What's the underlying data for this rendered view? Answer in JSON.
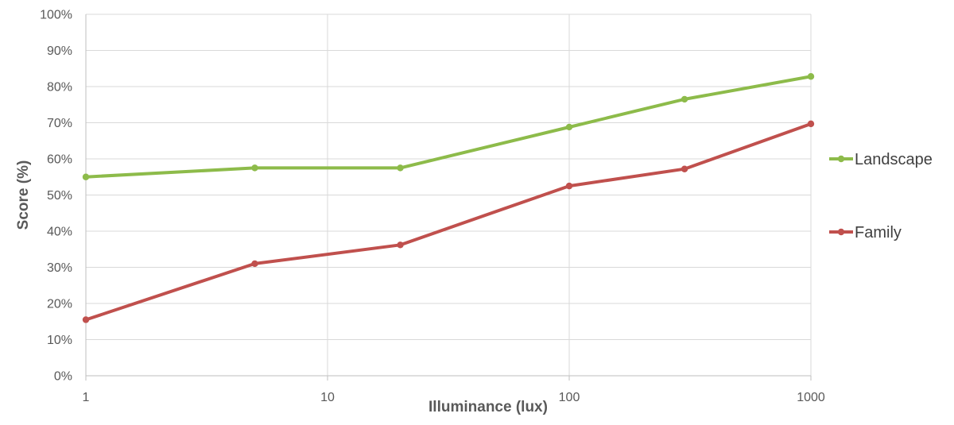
{
  "chart_data": {
    "type": "line",
    "title": "",
    "xlabel": "Illuminance (lux)",
    "ylabel": "Score (%)",
    "x_scale": "log",
    "xlim": [
      1,
      1000
    ],
    "ylim": [
      0,
      100
    ],
    "x_ticks": [
      1,
      10,
      100,
      1000
    ],
    "x_tick_labels": [
      "1",
      "10",
      "100",
      "1000"
    ],
    "y_ticks": [
      0,
      10,
      20,
      30,
      40,
      50,
      60,
      70,
      80,
      90,
      100
    ],
    "y_tick_labels": [
      "0%",
      "10%",
      "20%",
      "30%",
      "40%",
      "50%",
      "60%",
      "70%",
      "80%",
      "90%",
      "100%"
    ],
    "grid": true,
    "legend": "right",
    "series": [
      {
        "name": "Landscape",
        "color": "#8dbb4a",
        "x": [
          1,
          5,
          20,
          100,
          300,
          1000
        ],
        "y": [
          55.0,
          57.5,
          57.5,
          68.8,
          76.5,
          82.8
        ]
      },
      {
        "name": "Family",
        "color": "#c0504d",
        "x": [
          1,
          5,
          20,
          100,
          300,
          1000
        ],
        "y": [
          15.5,
          31.0,
          36.2,
          52.5,
          57.2,
          69.7
        ]
      }
    ]
  }
}
